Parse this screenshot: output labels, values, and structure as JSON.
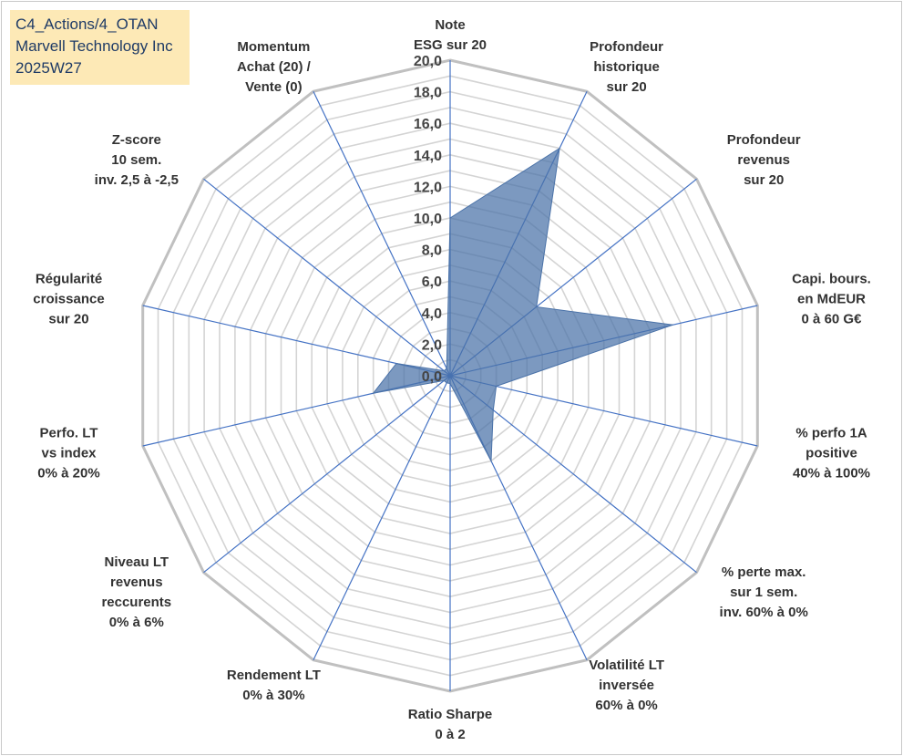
{
  "title_box": {
    "lines": [
      "C4_Actions/4_OTAN",
      "Marvell Technology Inc",
      "2025W27"
    ]
  },
  "colors": {
    "fill": "#4a72a8",
    "fill_opacity": "0.72",
    "grid_outer": "#c0c0c0",
    "grid_inner": "#d4d4d4",
    "spoke": "#4472c4",
    "title_bg": "#fde9b6"
  },
  "chart_data": {
    "type": "radar",
    "rlim": [
      0,
      20
    ],
    "grid": true,
    "ticks": [
      "0,0",
      "2,0",
      "4,0",
      "6,0",
      "8,0",
      "10,0",
      "12,0",
      "14,0",
      "16,0",
      "18,0",
      "20,0"
    ],
    "axes": [
      {
        "label": [
          "Note",
          "ESG sur 20"
        ],
        "value": 10.0
      },
      {
        "label": [
          "Profondeur",
          "historique",
          "sur 20"
        ],
        "value": 16.0
      },
      {
        "label": [
          "Profondeur",
          "revenus",
          "sur 20"
        ],
        "value": 7.0
      },
      {
        "label": [
          "Capi. bours.",
          "en MdEUR",
          "0 à 60 G€"
        ],
        "value": 14.5
      },
      {
        "label": [
          "% perfo 1A",
          "positive",
          "40% à 100%"
        ],
        "value": 3.0
      },
      {
        "label": [
          "% perte max.",
          "sur 1 sem.",
          "inv. 60% à 0%"
        ],
        "value": 3.5
      },
      {
        "label": [
          "Volatilité LT",
          "inversée",
          "60% à 0%"
        ],
        "value": 6.0
      },
      {
        "label": [
          "Ratio Sharpe",
          "0 à 2"
        ],
        "value": 0.5
      },
      {
        "label": [
          "Rendement LT",
          "0% à 30%"
        ],
        "value": 0.5
      },
      {
        "label": [
          "Niveau LT",
          "revenus",
          "reccurents",
          "0% à 6%"
        ],
        "value": 0.5
      },
      {
        "label": [
          "Perfo. LT",
          "vs index",
          "0% à 20%"
        ],
        "value": 5.0
      },
      {
        "label": [
          "Régularité",
          "croissance",
          "sur 20"
        ],
        "value": 3.5
      },
      {
        "label": [
          "Z-score",
          "10 sem.",
          "inv. 2,5 à -2,5"
        ],
        "value": 0.5
      },
      {
        "label": [
          "Momentum",
          "Achat (20) /",
          "Vente (0)"
        ],
        "value": 0.5
      }
    ]
  }
}
